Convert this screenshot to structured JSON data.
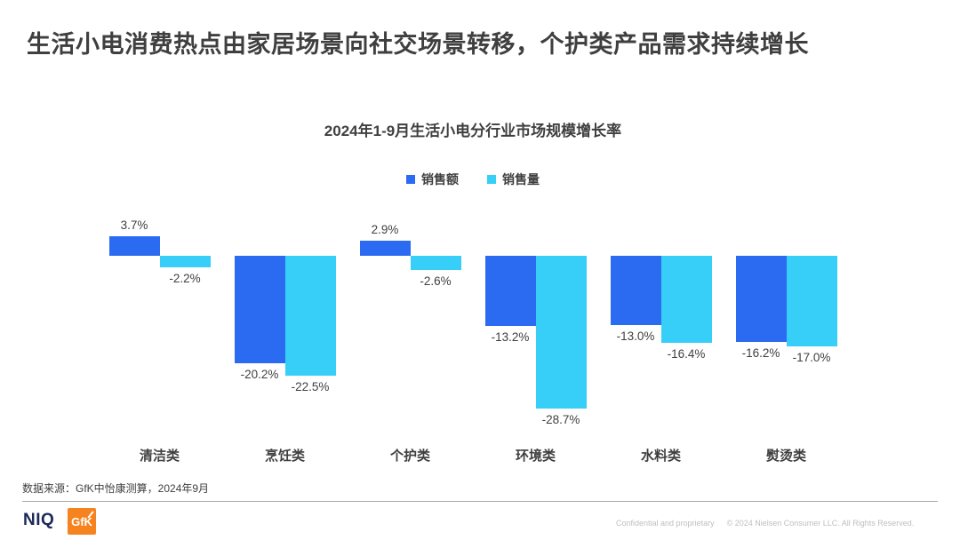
{
  "page": {
    "title": "生活小电消费热点由家居场景向社交场景转移，个护类产品需求持续增长",
    "source_note": "数据来源：GfK中怡康测算，2024年9月"
  },
  "chart_data": {
    "type": "bar",
    "title": "2024年1-9月生活小电分行业市场规模增长率",
    "categories": [
      "清洁类",
      "烹饪类",
      "个护类",
      "环境类",
      "水料类",
      "熨烫类"
    ],
    "series": [
      {
        "name": "销售额",
        "color": "#2b6bf1",
        "values": [
          3.7,
          -20.2,
          2.9,
          -13.2,
          -13.0,
          -16.2
        ]
      },
      {
        "name": "销售量",
        "color": "#37cff7",
        "values": [
          -2.2,
          -22.5,
          -2.6,
          -28.7,
          -16.4,
          -17.0
        ]
      }
    ],
    "unit": "%",
    "xlabel": "",
    "ylabel": "",
    "ylim": [
      -30,
      5
    ],
    "grid": false,
    "axes_hidden": true,
    "value_labels": true,
    "legend_position": "top"
  },
  "colors": {
    "sales_amount_blue": "#2b6bf1",
    "sales_volume_cyan": "#37cff7",
    "title_text": "#3f3f3f",
    "gfk_orange": "#f5831f",
    "niq_navy": "#1b2757"
  },
  "footer": {
    "niq_logo": "NIQ",
    "gfk_logo": "GfK",
    "confidential": "Confidential and proprietary",
    "copyright": "© 2024 Nielsen Consumer LLC. All Rights Reserved."
  }
}
